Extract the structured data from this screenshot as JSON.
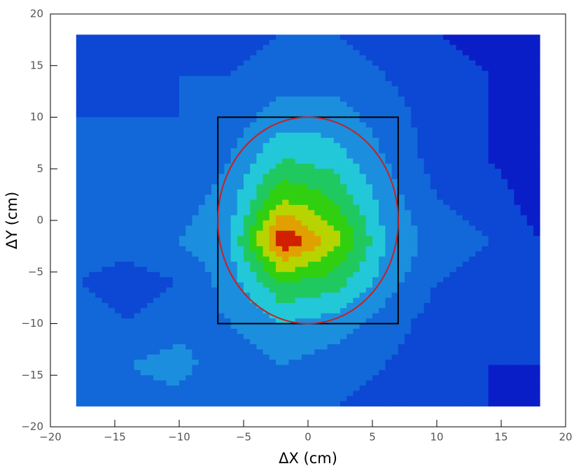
{
  "chart_data": {
    "type": "contour",
    "xlabel": "ΔX (cm)",
    "ylabel": "ΔY (cm)",
    "x": [
      -18,
      -14,
      -10,
      -6,
      -2,
      2,
      6,
      10,
      14,
      18
    ],
    "y": [
      18,
      14,
      10,
      6,
      2,
      -2,
      -6,
      -10,
      -14,
      -18
    ],
    "z": [
      [
        2,
        3,
        3,
        3,
        4,
        4,
        3,
        2,
        1,
        1
      ],
      [
        2,
        3,
        4,
        4,
        5,
        5,
        4,
        3,
        2,
        1
      ],
      [
        4,
        4,
        4,
        5,
        7,
        7,
        5,
        3,
        2,
        1
      ],
      [
        5,
        4,
        4,
        6,
        10,
        9,
        6,
        3,
        2,
        1
      ],
      [
        6,
        5,
        5,
        7,
        14,
        12,
        7,
        4,
        3,
        1
      ],
      [
        5,
        5,
        6,
        8,
        20,
        15,
        8,
        5,
        4,
        2
      ],
      [
        4,
        3,
        4,
        7,
        12,
        11,
        7,
        4,
        3,
        2
      ],
      [
        5,
        4,
        5,
        6,
        8,
        7,
        5,
        3,
        3,
        2
      ],
      [
        5,
        6,
        7,
        4,
        6,
        5,
        4,
        3,
        2,
        2
      ],
      [
        4,
        5,
        5,
        4,
        4,
        4,
        3,
        2,
        2,
        1
      ]
    ],
    "levels": [
      0,
      2,
      4,
      6,
      8,
      10,
      12,
      14,
      16,
      18
    ],
    "colors": [
      "#0a1ec8",
      "#0c48d4",
      "#1268d8",
      "#1c8ede",
      "#22c8d8",
      "#20c860",
      "#30d010",
      "#b8d400",
      "#e0a000",
      "#d02000"
    ],
    "box": {
      "x": [
        -7,
        7
      ],
      "y": [
        -10,
        10
      ],
      "color": "#000000"
    },
    "ellipse": {
      "cx": 0,
      "cy": 0,
      "rx": 7,
      "ry": 10,
      "color": "#c82020"
    },
    "xlim": [
      -20,
      20
    ],
    "ylim": [
      -20,
      20
    ],
    "xticks": [
      {
        "value": -20,
        "label": "−20"
      },
      {
        "value": -15,
        "label": "−15"
      },
      {
        "value": -10,
        "label": "−10"
      },
      {
        "value": -5,
        "label": "−5"
      },
      0,
      5,
      10,
      15,
      20
    ],
    "yticks": [
      {
        "value": -20,
        "label": "−20"
      },
      {
        "value": -15,
        "label": "−15"
      },
      {
        "value": -10,
        "label": "−10"
      },
      {
        "value": -5,
        "label": "−5"
      },
      0,
      5,
      10,
      15,
      20
    ]
  }
}
